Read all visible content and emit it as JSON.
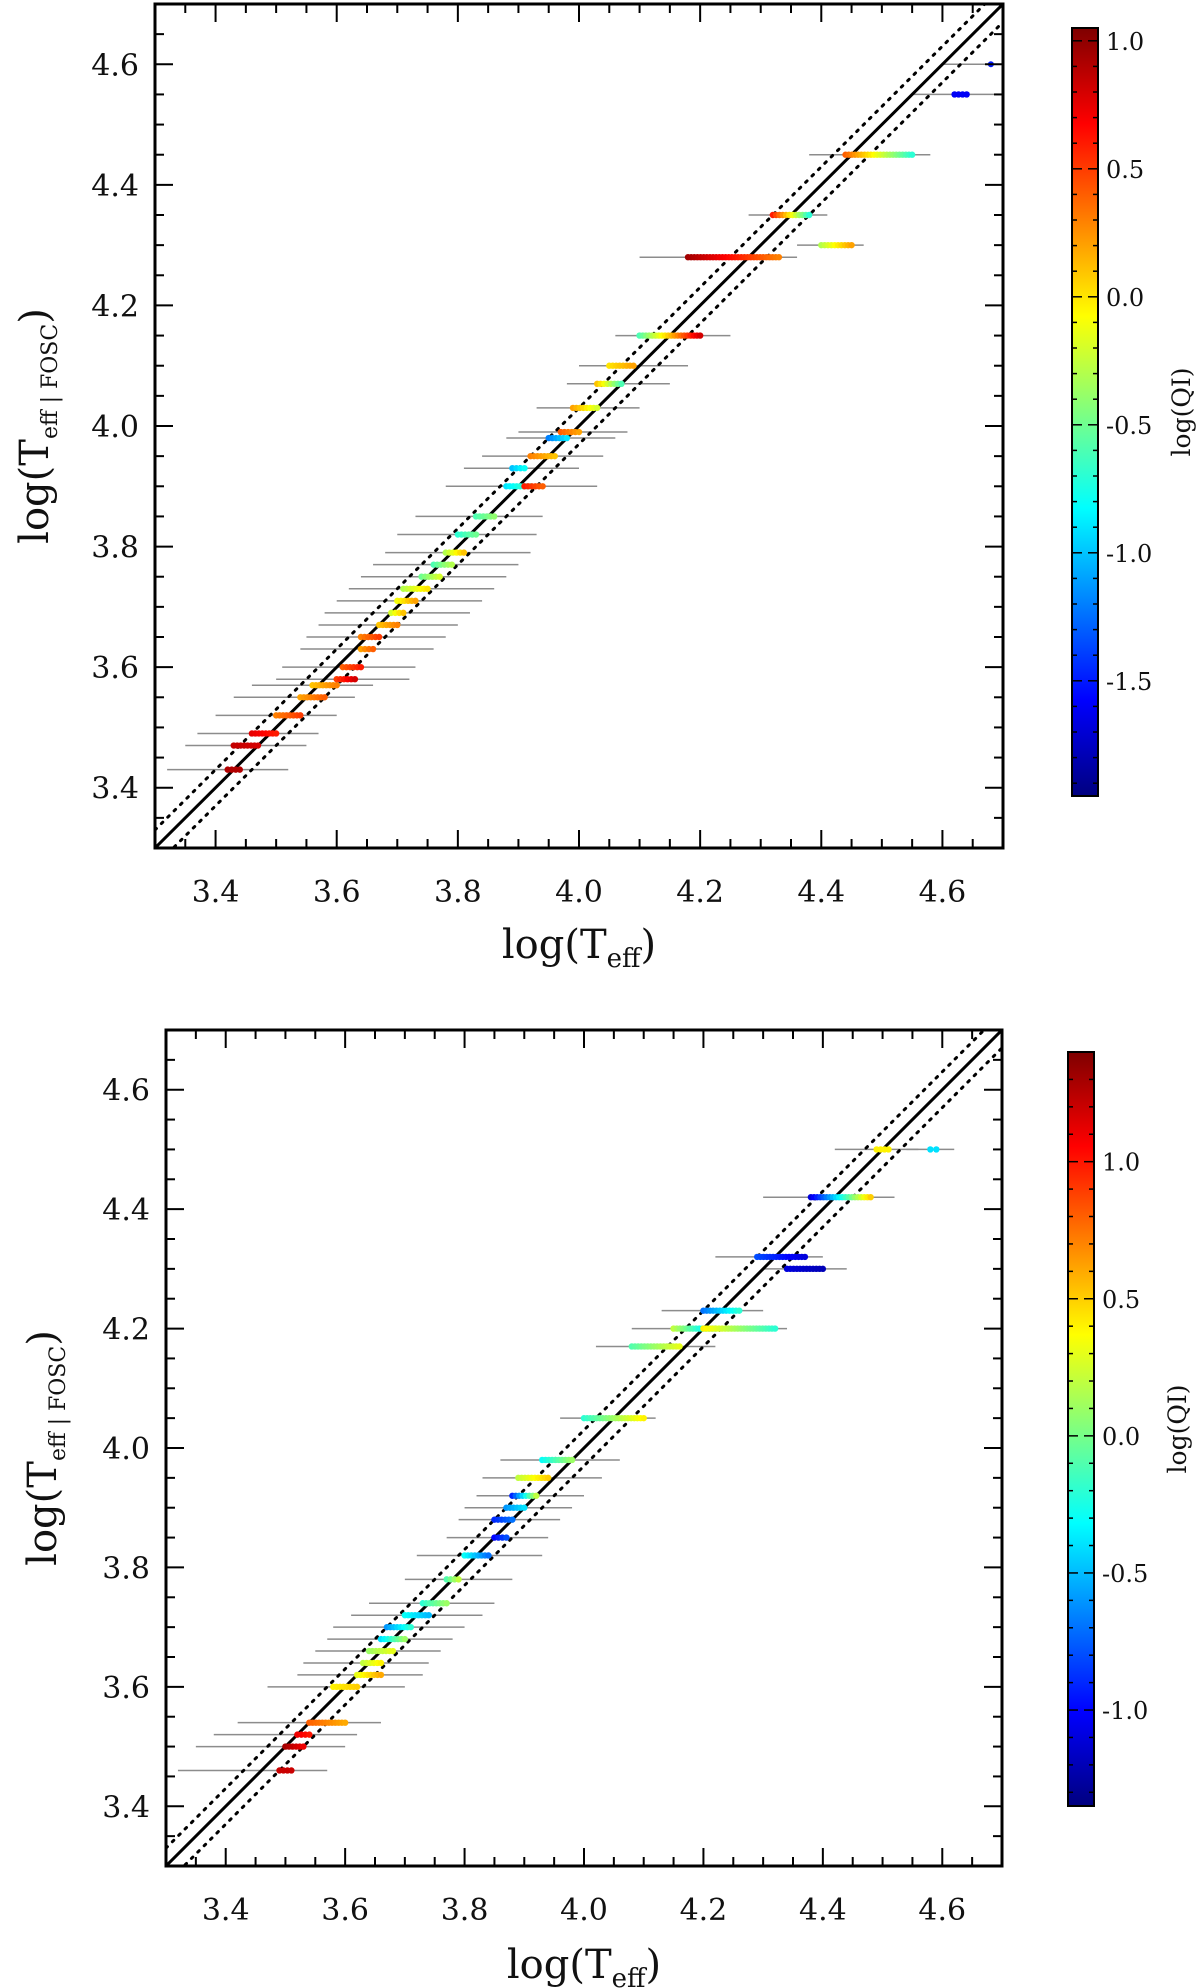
{
  "chart_data": [
    {
      "type": "scatter",
      "xlabel": "log(T_eff)",
      "ylabel": "log(T_eff | FOSC)",
      "xlabel_parts": {
        "base": "log(T",
        "sub": "eff",
        "close": ")"
      },
      "ylabel_parts": {
        "base": "log(T",
        "sub": "eff | FOSC",
        "close": ")"
      },
      "xlim": [
        3.3,
        4.7
      ],
      "ylim": [
        3.3,
        4.7
      ],
      "xticks": [
        "3.4",
        "3.6",
        "3.8",
        "4.0",
        "4.2",
        "4.4",
        "4.6"
      ],
      "yticks": [
        "3.4",
        "3.6",
        "3.8",
        "4.0",
        "4.2",
        "4.4",
        "4.6"
      ],
      "lines": [
        {
          "name": "one-to-one",
          "style": "solid",
          "offset": 0.0
        },
        {
          "name": "upper-bound",
          "style": "dotted",
          "offset": 0.03
        },
        {
          "name": "lower-bound",
          "style": "dotted",
          "offset": -0.03
        }
      ],
      "colorbar": {
        "label": "log(QI)",
        "range": [
          -1.95,
          1.05
        ],
        "ticks": [
          "1.0",
          "0.5",
          "0.0",
          "-0.5",
          "-1.0",
          "-1.5"
        ]
      },
      "points": [
        {
          "x0": 3.42,
          "x1": 3.44,
          "y": 3.43,
          "q0": 0.9,
          "q1": 0.9,
          "ex0": 3.32,
          "ex1": 3.52
        },
        {
          "x0": 3.43,
          "x1": 3.47,
          "y": 3.47,
          "q0": 0.85,
          "q1": 0.8,
          "ex0": 3.35,
          "ex1": 3.55
        },
        {
          "x0": 3.46,
          "x1": 3.5,
          "y": 3.49,
          "q0": 0.75,
          "q1": 0.6,
          "ex0": 3.37,
          "ex1": 3.57
        },
        {
          "x0": 3.5,
          "x1": 3.54,
          "y": 3.52,
          "q0": 0.3,
          "q1": 0.5,
          "ex0": 3.4,
          "ex1": 3.6
        },
        {
          "x0": 3.54,
          "x1": 3.58,
          "y": 3.55,
          "q0": 0.2,
          "q1": 0.4,
          "ex0": 3.43,
          "ex1": 3.63
        },
        {
          "x0": 3.56,
          "x1": 3.6,
          "y": 3.57,
          "q0": 0.1,
          "q1": 0.3,
          "ex0": 3.46,
          "ex1": 3.66
        },
        {
          "x0": 3.6,
          "x1": 3.63,
          "y": 3.58,
          "q0": 0.5,
          "q1": 0.8,
          "ex0": 3.5,
          "ex1": 3.72
        },
        {
          "x0": 3.61,
          "x1": 3.64,
          "y": 3.6,
          "q0": 0.4,
          "q1": 0.6,
          "ex0": 3.51,
          "ex1": 3.73
        },
        {
          "x0": 3.64,
          "x1": 3.66,
          "y": 3.63,
          "q0": 0.2,
          "q1": 0.4,
          "ex0": 3.54,
          "ex1": 3.76
        },
        {
          "x0": 3.64,
          "x1": 3.67,
          "y": 3.65,
          "q0": 0.3,
          "q1": 0.5,
          "ex0": 3.55,
          "ex1": 3.78
        },
        {
          "x0": 3.67,
          "x1": 3.7,
          "y": 3.67,
          "q0": 0.1,
          "q1": 0.3,
          "ex0": 3.57,
          "ex1": 3.8
        },
        {
          "x0": 3.69,
          "x1": 3.71,
          "y": 3.69,
          "q0": -0.2,
          "q1": 0.1,
          "ex0": 3.58,
          "ex1": 3.82
        },
        {
          "x0": 3.7,
          "x1": 3.73,
          "y": 3.71,
          "q0": -0.1,
          "q1": 0.2,
          "ex0": 3.6,
          "ex1": 3.84
        },
        {
          "x0": 3.71,
          "x1": 3.75,
          "y": 3.73,
          "q0": -0.3,
          "q1": 0.0,
          "ex0": 3.62,
          "ex1": 3.86
        },
        {
          "x0": 3.74,
          "x1": 3.77,
          "y": 3.75,
          "q0": -0.5,
          "q1": -0.2,
          "ex0": 3.64,
          "ex1": 3.88
        },
        {
          "x0": 3.76,
          "x1": 3.79,
          "y": 3.77,
          "q0": -0.6,
          "q1": -0.3,
          "ex0": 3.66,
          "ex1": 3.9
        },
        {
          "x0": 3.78,
          "x1": 3.81,
          "y": 3.79,
          "q0": -0.3,
          "q1": 0.1,
          "ex0": 3.68,
          "ex1": 3.92
        },
        {
          "x0": 3.8,
          "x1": 3.83,
          "y": 3.82,
          "q0": -0.7,
          "q1": -0.5,
          "ex0": 3.7,
          "ex1": 3.93
        },
        {
          "x0": 3.83,
          "x1": 3.86,
          "y": 3.85,
          "q0": -0.6,
          "q1": -0.4,
          "ex0": 3.73,
          "ex1": 3.94
        },
        {
          "x0": 3.88,
          "x1": 3.92,
          "y": 3.9,
          "q0": -0.9,
          "q1": -0.6,
          "ex0": 3.78,
          "ex1": 3.97
        },
        {
          "x0": 3.91,
          "x1": 3.94,
          "y": 3.9,
          "q0": 0.6,
          "q1": 0.4,
          "ex0": 3.83,
          "ex1": 4.03
        },
        {
          "x0": 3.89,
          "x1": 3.91,
          "y": 3.93,
          "q0": -1.0,
          "q1": -0.8,
          "ex0": 3.81,
          "ex1": 4.0
        },
        {
          "x0": 3.92,
          "x1": 3.96,
          "y": 3.95,
          "q0": 0.3,
          "q1": 0.1,
          "ex0": 3.84,
          "ex1": 4.04
        },
        {
          "x0": 3.95,
          "x1": 3.98,
          "y": 3.98,
          "q0": -1.2,
          "q1": -0.9,
          "ex0": 3.88,
          "ex1": 4.06
        },
        {
          "x0": 3.97,
          "x1": 4.0,
          "y": 3.99,
          "q0": 0.4,
          "q1": 0.2,
          "ex0": 3.9,
          "ex1": 4.08
        },
        {
          "x0": 3.99,
          "x1": 4.03,
          "y": 4.03,
          "q0": 0.2,
          "q1": -0.2,
          "ex0": 3.93,
          "ex1": 4.1
        },
        {
          "x0": 4.03,
          "x1": 4.07,
          "y": 4.07,
          "q0": 0.1,
          "q1": -0.6,
          "ex0": 3.98,
          "ex1": 4.15
        },
        {
          "x0": 4.05,
          "x1": 4.09,
          "y": 4.1,
          "q0": 0.0,
          "q1": 0.2,
          "ex0": 4.0,
          "ex1": 4.18
        },
        {
          "x0": 4.1,
          "x1": 4.2,
          "y": 4.15,
          "q0": -0.6,
          "q1": 0.8,
          "ex0": 4.06,
          "ex1": 4.25
        },
        {
          "x0": 4.18,
          "x1": 4.33,
          "y": 4.28,
          "q0": 0.95,
          "q1": 0.3,
          "ex0": 4.1,
          "ex1": 4.36
        },
        {
          "x0": 4.32,
          "x1": 4.38,
          "y": 4.35,
          "q0": 0.6,
          "q1": -0.7,
          "ex0": 4.28,
          "ex1": 4.41
        },
        {
          "x0": 4.4,
          "x1": 4.45,
          "y": 4.3,
          "q0": -0.3,
          "q1": 0.2,
          "ex0": 4.36,
          "ex1": 4.47
        },
        {
          "x0": 4.44,
          "x1": 4.55,
          "y": 4.45,
          "q0": 0.4,
          "q1": -0.7,
          "ex0": 4.38,
          "ex1": 4.58
        },
        {
          "x0": 4.62,
          "x1": 4.64,
          "y": 4.55,
          "q0": -1.6,
          "q1": -1.6,
          "ex0": 4.55,
          "ex1": 4.7
        },
        {
          "x0": 4.68,
          "x1": 4.68,
          "y": 4.6,
          "q0": -1.5,
          "q1": -1.5,
          "ex0": 4.6,
          "ex1": 4.72
        }
      ]
    },
    {
      "type": "scatter",
      "xlabel": "log(T_eff)",
      "ylabel": "log(T_eff | FOSC)",
      "xlabel_parts": {
        "base": "log(T",
        "sub": "eff",
        "close": ")"
      },
      "ylabel_parts": {
        "base": "log(T",
        "sub": "eff | FOSC",
        "close": ")"
      },
      "xlim": [
        3.3,
        4.7
      ],
      "ylim": [
        3.3,
        4.7
      ],
      "xticks": [
        "3.4",
        "3.6",
        "3.8",
        "4.0",
        "4.2",
        "4.4",
        "4.6"
      ],
      "yticks": [
        "3.4",
        "3.6",
        "3.8",
        "4.0",
        "4.2",
        "4.4",
        "4.6"
      ],
      "lines": [
        {
          "name": "one-to-one",
          "style": "solid",
          "offset": 0.0
        },
        {
          "name": "upper-bound",
          "style": "dotted",
          "offset": 0.03
        },
        {
          "name": "lower-bound",
          "style": "dotted",
          "offset": -0.03
        }
      ],
      "colorbar": {
        "label": "log(QI)",
        "range": [
          -1.35,
          1.4
        ],
        "ticks": [
          "1.0",
          "0.5",
          "0.0",
          "-0.5",
          "-1.0"
        ]
      },
      "points": [
        {
          "x0": 3.49,
          "x1": 3.51,
          "y": 3.46,
          "q0": 1.2,
          "q1": 1.2,
          "ex0": 3.32,
          "ex1": 3.57
        },
        {
          "x0": 3.5,
          "x1": 3.53,
          "y": 3.5,
          "q0": 1.3,
          "q1": 1.1,
          "ex0": 3.35,
          "ex1": 3.6
        },
        {
          "x0": 3.52,
          "x1": 3.54,
          "y": 3.52,
          "q0": 1.1,
          "q1": 1.0,
          "ex0": 3.38,
          "ex1": 3.62
        },
        {
          "x0": 3.54,
          "x1": 3.6,
          "y": 3.54,
          "q0": 0.8,
          "q1": 0.6,
          "ex0": 3.42,
          "ex1": 3.66
        },
        {
          "x0": 3.58,
          "x1": 3.62,
          "y": 3.6,
          "q0": 0.4,
          "q1": 0.5,
          "ex0": 3.47,
          "ex1": 3.7
        },
        {
          "x0": 3.62,
          "x1": 3.66,
          "y": 3.62,
          "q0": 0.3,
          "q1": 0.6,
          "ex0": 3.52,
          "ex1": 3.73
        },
        {
          "x0": 3.63,
          "x1": 3.66,
          "y": 3.64,
          "q0": 0.2,
          "q1": 0.4,
          "ex0": 3.53,
          "ex1": 3.74
        },
        {
          "x0": 3.64,
          "x1": 3.68,
          "y": 3.66,
          "q0": 0.1,
          "q1": 0.3,
          "ex0": 3.55,
          "ex1": 3.76
        },
        {
          "x0": 3.66,
          "x1": 3.7,
          "y": 3.68,
          "q0": -0.4,
          "q1": 0.1,
          "ex0": 3.57,
          "ex1": 3.78
        },
        {
          "x0": 3.67,
          "x1": 3.71,
          "y": 3.7,
          "q0": -0.6,
          "q1": -0.2,
          "ex0": 3.58,
          "ex1": 3.8
        },
        {
          "x0": 3.7,
          "x1": 3.74,
          "y": 3.72,
          "q0": -0.3,
          "q1": -0.5,
          "ex0": 3.61,
          "ex1": 3.83
        },
        {
          "x0": 3.73,
          "x1": 3.77,
          "y": 3.74,
          "q0": -0.2,
          "q1": 0.1,
          "ex0": 3.64,
          "ex1": 3.85
        },
        {
          "x0": 3.77,
          "x1": 3.79,
          "y": 3.78,
          "q0": -0.1,
          "q1": 0.2,
          "ex0": 3.7,
          "ex1": 3.88
        },
        {
          "x0": 3.8,
          "x1": 3.84,
          "y": 3.82,
          "q0": -0.3,
          "q1": -0.7,
          "ex0": 3.72,
          "ex1": 3.93
        },
        {
          "x0": 3.85,
          "x1": 3.87,
          "y": 3.85,
          "q0": -1.0,
          "q1": -0.8,
          "ex0": 3.77,
          "ex1": 3.94
        },
        {
          "x0": 3.85,
          "x1": 3.88,
          "y": 3.88,
          "q0": -0.9,
          "q1": -0.7,
          "ex0": 3.79,
          "ex1": 3.96
        },
        {
          "x0": 3.87,
          "x1": 3.9,
          "y": 3.9,
          "q0": -0.6,
          "q1": -0.4,
          "ex0": 3.8,
          "ex1": 3.98
        },
        {
          "x0": 3.88,
          "x1": 3.92,
          "y": 3.92,
          "q0": -0.9,
          "q1": 0.2,
          "ex0": 3.82,
          "ex1": 4.0
        },
        {
          "x0": 3.89,
          "x1": 3.94,
          "y": 3.95,
          "q0": 0.2,
          "q1": 0.5,
          "ex0": 3.83,
          "ex1": 4.03
        },
        {
          "x0": 3.93,
          "x1": 3.98,
          "y": 3.98,
          "q0": -0.3,
          "q1": 0.1,
          "ex0": 3.86,
          "ex1": 4.06
        },
        {
          "x0": 4.0,
          "x1": 4.1,
          "y": 4.05,
          "q0": -0.2,
          "q1": 0.4,
          "ex0": 3.96,
          "ex1": 4.12
        },
        {
          "x0": 4.08,
          "x1": 4.16,
          "y": 4.17,
          "q0": -0.1,
          "q1": 0.3,
          "ex0": 4.02,
          "ex1": 4.22
        },
        {
          "x0": 4.15,
          "x1": 4.22,
          "y": 4.2,
          "q0": 0.2,
          "q1": -0.5,
          "ex0": 4.08,
          "ex1": 4.28
        },
        {
          "x0": 4.2,
          "x1": 4.32,
          "y": 4.2,
          "q0": 0.4,
          "q1": -0.2,
          "ex0": 4.15,
          "ex1": 4.34
        },
        {
          "x0": 4.2,
          "x1": 4.26,
          "y": 4.23,
          "q0": -0.7,
          "q1": -0.2,
          "ex0": 4.13,
          "ex1": 4.3
        },
        {
          "x0": 4.29,
          "x1": 4.37,
          "y": 4.32,
          "q0": -0.8,
          "q1": -1.1,
          "ex0": 4.22,
          "ex1": 4.4
        },
        {
          "x0": 4.34,
          "x1": 4.4,
          "y": 4.3,
          "q0": -1.1,
          "q1": -1.2,
          "ex0": 4.3,
          "ex1": 4.44
        },
        {
          "x0": 4.38,
          "x1": 4.48,
          "y": 4.42,
          "q0": -1.1,
          "q1": 0.5,
          "ex0": 4.3,
          "ex1": 4.52
        },
        {
          "x0": 4.49,
          "x1": 4.51,
          "y": 4.5,
          "q0": 0.4,
          "q1": 0.4,
          "ex0": 4.42,
          "ex1": 4.56
        },
        {
          "x0": 4.58,
          "x1": 4.59,
          "y": 4.5,
          "q0": -0.4,
          "q1": -0.4,
          "ex0": 4.54,
          "ex1": 4.62
        }
      ]
    }
  ]
}
